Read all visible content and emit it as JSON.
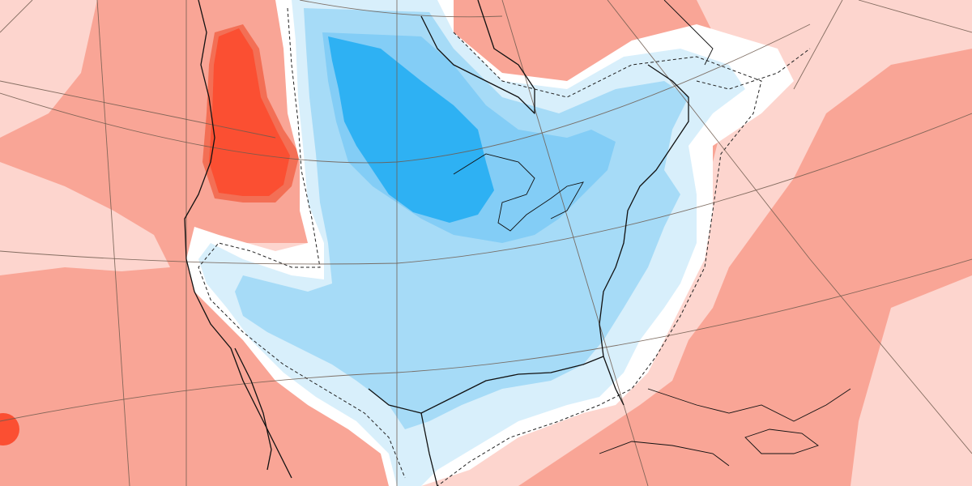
{
  "map": {
    "projection": "polar-stereographic",
    "region": "North America",
    "colors": {
      "warm_light": "#fdd5ce",
      "warm_mid": "#f9a596",
      "warm_strong": "#f36f55",
      "warm_intense": "#fb4f32",
      "neutral": "#ffffff",
      "cool_light": "#d8effb",
      "cool_mid": "#a6dbf7",
      "cool_strong": "#83cdf6",
      "cool_intense": "#2eb1f3",
      "coastline": "#111111",
      "graticule": "#6e5a4e",
      "contour": "#222222"
    },
    "contour_style": "dashed",
    "graticule": true,
    "legend": null,
    "title": null
  }
}
